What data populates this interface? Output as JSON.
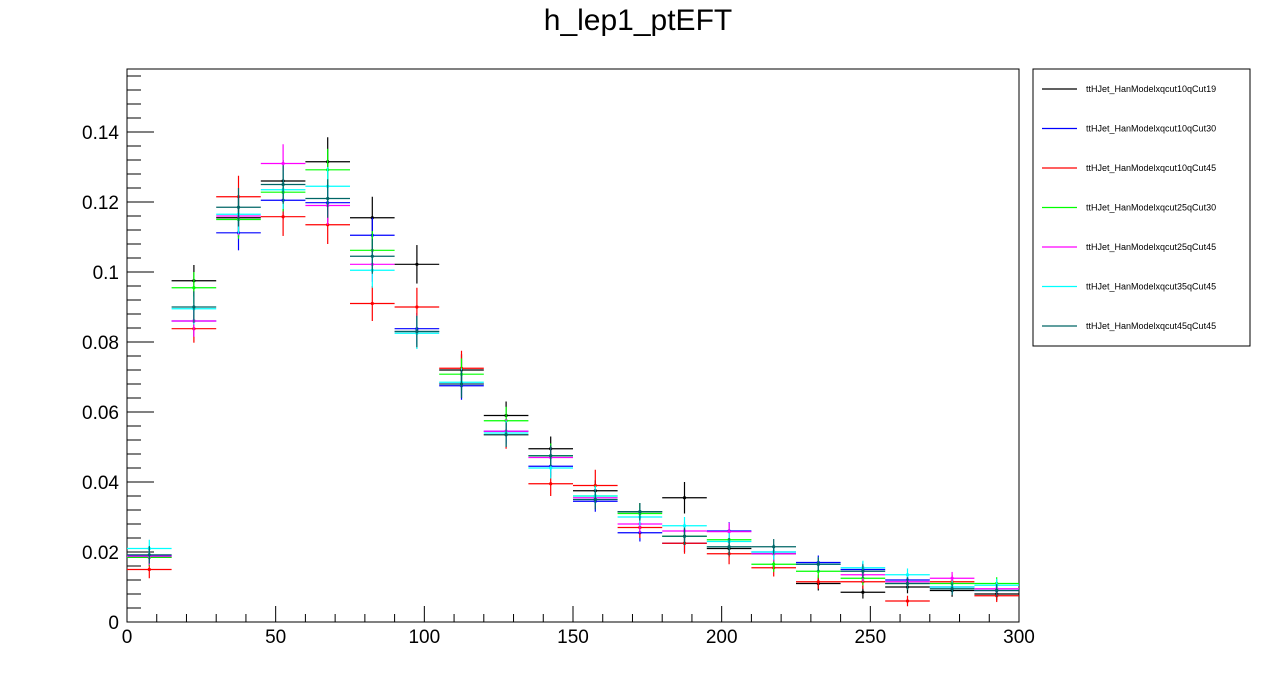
{
  "chart_data": {
    "type": "scatter",
    "title": "h_lep1_ptEFT",
    "xlabel": "",
    "ylabel": "",
    "xlim": [
      0,
      300
    ],
    "ylim": [
      0,
      0.158
    ],
    "grid": false,
    "legend_position": "right",
    "x_ticks": [
      "0",
      "50",
      "100",
      "150",
      "200",
      "250",
      "300"
    ],
    "y_ticks": [
      "0",
      "0.02",
      "0.04",
      "0.06",
      "0.08",
      "0.1",
      "0.12",
      "0.14"
    ],
    "bin_centers": [
      7.5,
      22.5,
      37.5,
      52.5,
      67.5,
      82.5,
      97.5,
      112.5,
      127.5,
      142.5,
      157.5,
      172.5,
      187.5,
      202.5,
      217.5,
      232.5,
      247.5,
      262.5,
      277.5,
      292.5
    ],
    "bin_half_width": 7.5,
    "series": [
      {
        "name": "ttHJet_HanModelxqcut10qCut19",
        "color": "#000000",
        "values": [
          0.0185,
          0.0975,
          0.1155,
          0.126,
          0.1315,
          0.1155,
          0.1022,
          0.072,
          0.059,
          0.0495,
          0.0375,
          0.0315,
          0.0355,
          0.021,
          0.0195,
          0.011,
          0.0085,
          0.01,
          0.009,
          0.008
        ],
        "err": [
          0.0025,
          0.0045,
          0.0055,
          0.006,
          0.007,
          0.006,
          0.0055,
          0.0045,
          0.004,
          0.0035,
          0.003,
          0.0025,
          0.0045,
          0.0025,
          0.0025,
          0.002,
          0.0018,
          0.0018,
          0.0018,
          0.0018
        ]
      },
      {
        "name": "ttHJet_HanModelxqcut10qCut30",
        "color": "#0000ff",
        "values": [
          0.019,
          0.086,
          0.1112,
          0.1205,
          0.1198,
          0.1105,
          0.0838,
          0.0675,
          0.0545,
          0.0445,
          0.0345,
          0.0255,
          0.0225,
          0.026,
          0.02,
          0.017,
          0.015,
          0.012,
          0.01,
          0.009
        ],
        "err": [
          0.0025,
          0.0045,
          0.005,
          0.0055,
          0.0055,
          0.005,
          0.0045,
          0.004,
          0.0035,
          0.003,
          0.003,
          0.0025,
          0.0025,
          0.0025,
          0.0022,
          0.002,
          0.002,
          0.0018,
          0.0018,
          0.0018
        ]
      },
      {
        "name": "ttHJet_HanModelxqcut10qCut45",
        "color": "#ff0000",
        "values": [
          0.015,
          0.0838,
          0.1215,
          0.1158,
          0.1135,
          0.091,
          0.09,
          0.0725,
          0.0535,
          0.0395,
          0.039,
          0.027,
          0.0225,
          0.0195,
          0.0155,
          0.0115,
          0.0115,
          0.006,
          0.0115,
          0.0075
        ],
        "err": [
          0.0025,
          0.004,
          0.006,
          0.0055,
          0.0055,
          0.005,
          0.0055,
          0.005,
          0.004,
          0.0035,
          0.0045,
          0.003,
          0.003,
          0.003,
          0.0025,
          0.002,
          0.002,
          0.0015,
          0.002,
          0.0018
        ]
      },
      {
        "name": "ttHJet_HanModelxqcut25qCut30",
        "color": "#00ff00",
        "values": [
          0.0185,
          0.0955,
          0.115,
          0.1228,
          0.1292,
          0.1062,
          0.083,
          0.0708,
          0.0575,
          0.0475,
          0.036,
          0.031,
          0.0245,
          0.0235,
          0.0165,
          0.0145,
          0.0125,
          0.011,
          0.011,
          0.011
        ],
        "err": [
          0.0025,
          0.0045,
          0.0055,
          0.0055,
          0.006,
          0.0055,
          0.0045,
          0.0045,
          0.004,
          0.0035,
          0.003,
          0.0028,
          0.0025,
          0.0025,
          0.0022,
          0.002,
          0.002,
          0.0018,
          0.0018,
          0.0018
        ]
      },
      {
        "name": "ttHJet_HanModelxqcut25qCut45",
        "color": "#ff00ff",
        "values": [
          0.0188,
          0.086,
          0.116,
          0.131,
          0.119,
          0.1022,
          0.083,
          0.068,
          0.0545,
          0.047,
          0.0355,
          0.028,
          0.026,
          0.0258,
          0.0195,
          0.0165,
          0.0135,
          0.0115,
          0.0125,
          0.0095
        ],
        "err": [
          0.0025,
          0.0045,
          0.0055,
          0.0055,
          0.0055,
          0.005,
          0.0045,
          0.004,
          0.0035,
          0.003,
          0.0028,
          0.0025,
          0.0025,
          0.0025,
          0.0022,
          0.002,
          0.002,
          0.0018,
          0.0018,
          0.0018
        ]
      },
      {
        "name": "ttHJet_HanModelxqcut35qCut45",
        "color": "#00ffff",
        "values": [
          0.021,
          0.0895,
          0.1165,
          0.1235,
          0.1245,
          0.1005,
          0.0825,
          0.0685,
          0.054,
          0.044,
          0.036,
          0.03,
          0.0275,
          0.023,
          0.02,
          0.0165,
          0.0155,
          0.0135,
          0.01,
          0.0105
        ],
        "err": [
          0.0025,
          0.0045,
          0.0055,
          0.0055,
          0.0055,
          0.005,
          0.0045,
          0.004,
          0.0035,
          0.003,
          0.0028,
          0.0025,
          0.0025,
          0.0025,
          0.0022,
          0.002,
          0.002,
          0.0018,
          0.0018,
          0.0018
        ]
      },
      {
        "name": "ttHJet_HanModelxqcut45qCut45",
        "color": "#006666",
        "values": [
          0.0192,
          0.09,
          0.1185,
          0.125,
          0.121,
          0.1045,
          0.083,
          0.068,
          0.0535,
          0.0475,
          0.035,
          0.0315,
          0.0245,
          0.0215,
          0.0215,
          0.0165,
          0.0145,
          0.011,
          0.0095,
          0.009
        ],
        "err": [
          0.0025,
          0.0045,
          0.0055,
          0.0055,
          0.0055,
          0.005,
          0.0045,
          0.004,
          0.0035,
          0.003,
          0.0028,
          0.0025,
          0.0025,
          0.0025,
          0.0022,
          0.002,
          0.002,
          0.0018,
          0.0018,
          0.0018
        ]
      }
    ]
  }
}
